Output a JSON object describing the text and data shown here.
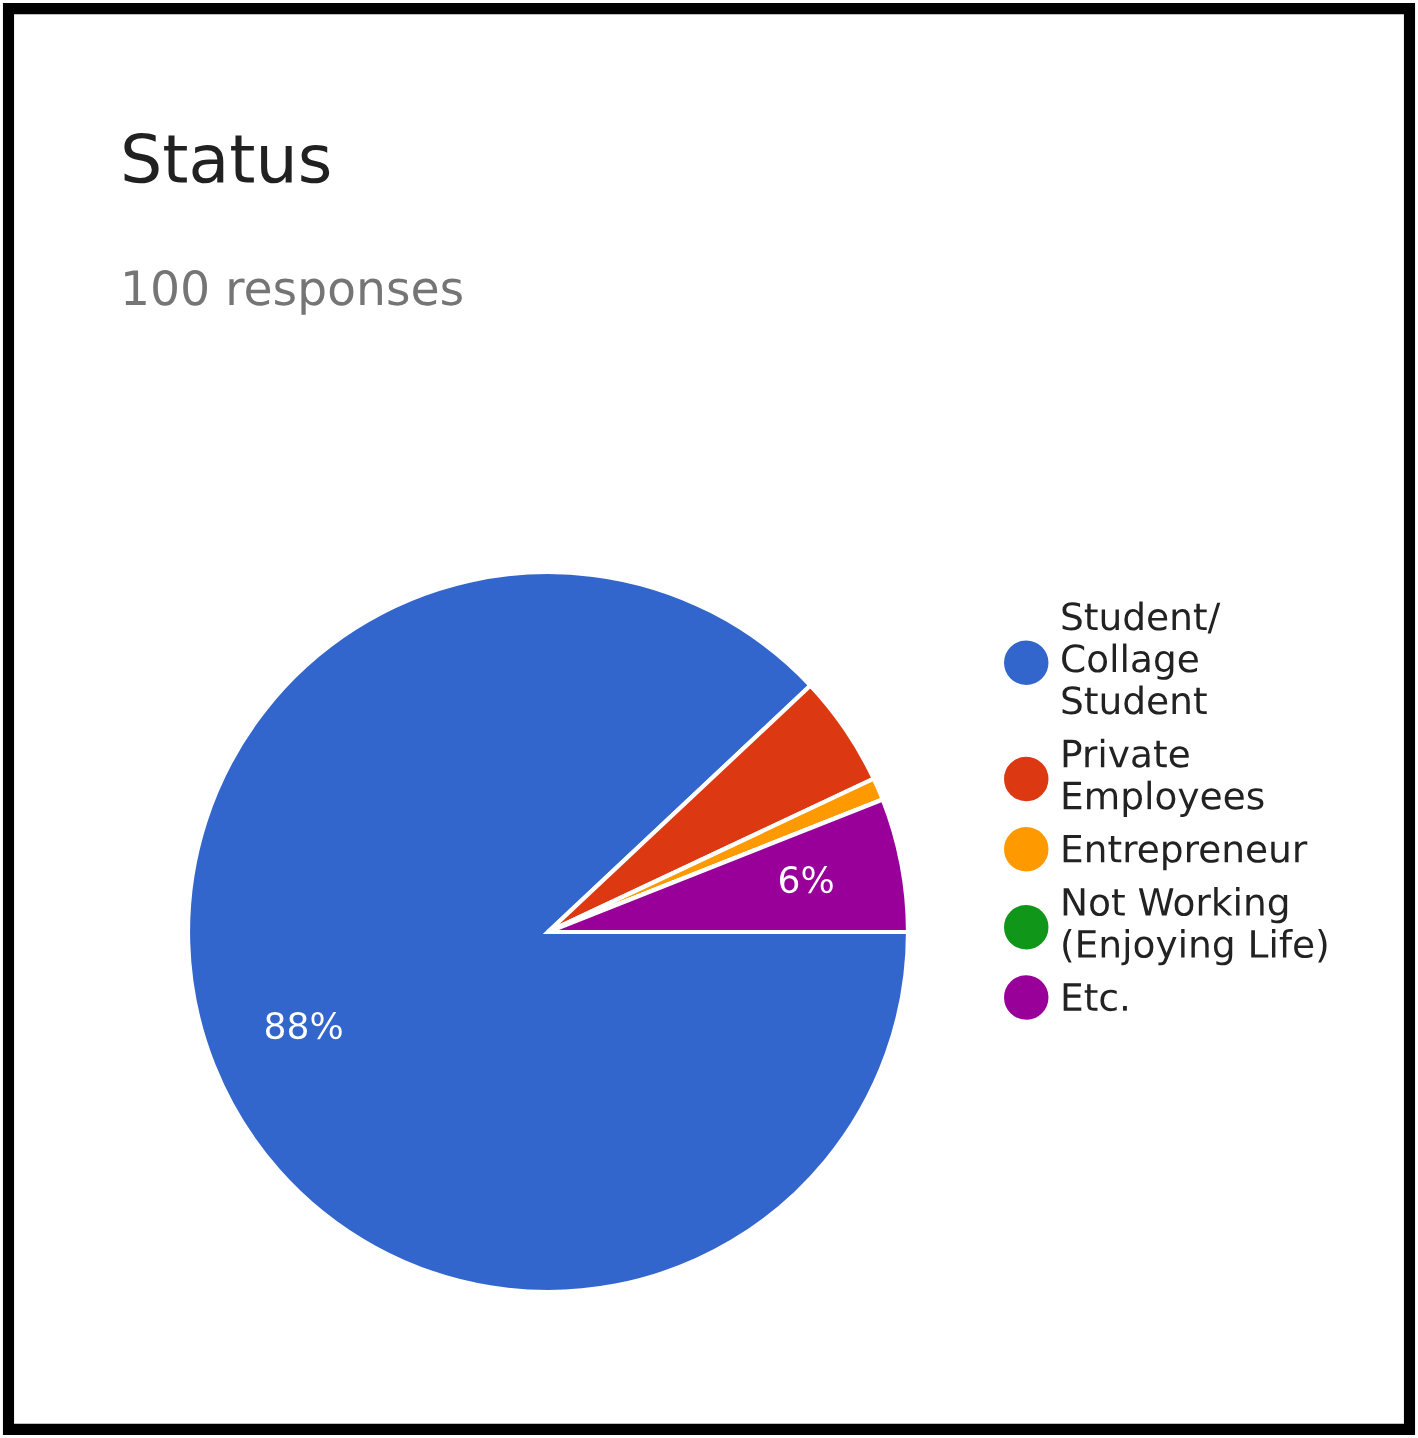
{
  "chart_data": {
    "type": "pie",
    "title": "Status",
    "subtitle": "100 responses",
    "categories": [
      "Student/\nCollage\nStudent",
      "Private\nEmployees",
      "Entrepreneur",
      "Not Working\n(Enjoying Life)",
      "Etc."
    ],
    "values": [
      88,
      5,
      1,
      0,
      6
    ],
    "colors": [
      "#3366cc",
      "#dc3912",
      "#ff9900",
      "#109618",
      "#990099"
    ],
    "value_labels": [
      "88%",
      null,
      null,
      null,
      "6%"
    ],
    "legend": "right"
  }
}
